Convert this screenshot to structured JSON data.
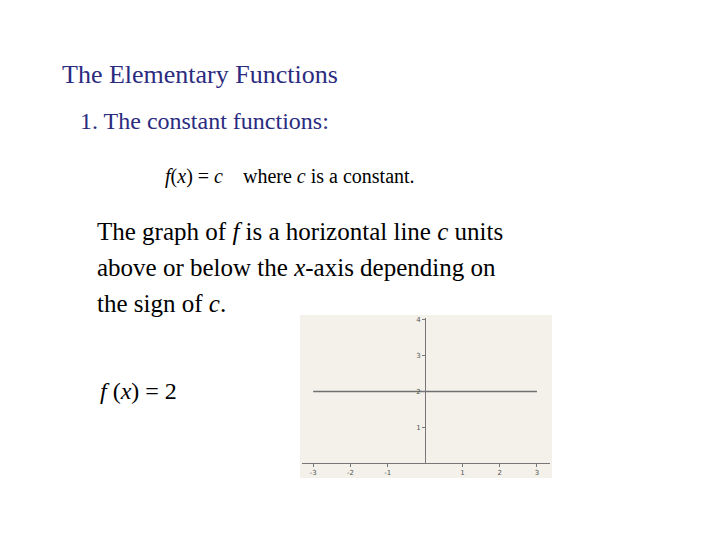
{
  "slide": {
    "title": "The Elementary Functions",
    "heading": "1. The constant functions:",
    "formula": [
      {
        "text": "f",
        "italic": true
      },
      {
        "text": "("
      },
      {
        "text": "x",
        "italic": true
      },
      {
        "text": ") = "
      },
      {
        "text": "c",
        "italic": true
      },
      {
        "text": "    where "
      },
      {
        "text": "c",
        "italic": true
      },
      {
        "text": " is a constant."
      }
    ],
    "paragraph": [
      [
        {
          "text": "The graph of "
        },
        {
          "text": "f",
          "italic": true
        },
        {
          "text": " is a horizontal line "
        },
        {
          "text": "c",
          "italic": true
        },
        {
          "text": " units"
        }
      ],
      [
        {
          "text": "above or below the "
        },
        {
          "text": "x",
          "italic": true
        },
        {
          "text": "-axis depending on"
        }
      ],
      [
        {
          "text": "the sign of "
        },
        {
          "text": "c",
          "italic": true
        },
        {
          "text": "."
        }
      ]
    ],
    "label": [
      {
        "text": "f",
        "italic": true
      },
      {
        "text": " ("
      },
      {
        "text": "x",
        "italic": true
      },
      {
        "text": ") = 2"
      }
    ]
  },
  "chart_data": {
    "type": "line",
    "x": [
      -3,
      3
    ],
    "values": [
      2,
      2
    ],
    "color": "#707070",
    "xlim": [
      -3.3,
      3.35
    ],
    "ylim": [
      0,
      4.05
    ],
    "xticks": [
      -3,
      -2,
      -1,
      1,
      2,
      3
    ],
    "yticks": [
      1,
      2,
      3,
      4
    ],
    "grid": false
  }
}
